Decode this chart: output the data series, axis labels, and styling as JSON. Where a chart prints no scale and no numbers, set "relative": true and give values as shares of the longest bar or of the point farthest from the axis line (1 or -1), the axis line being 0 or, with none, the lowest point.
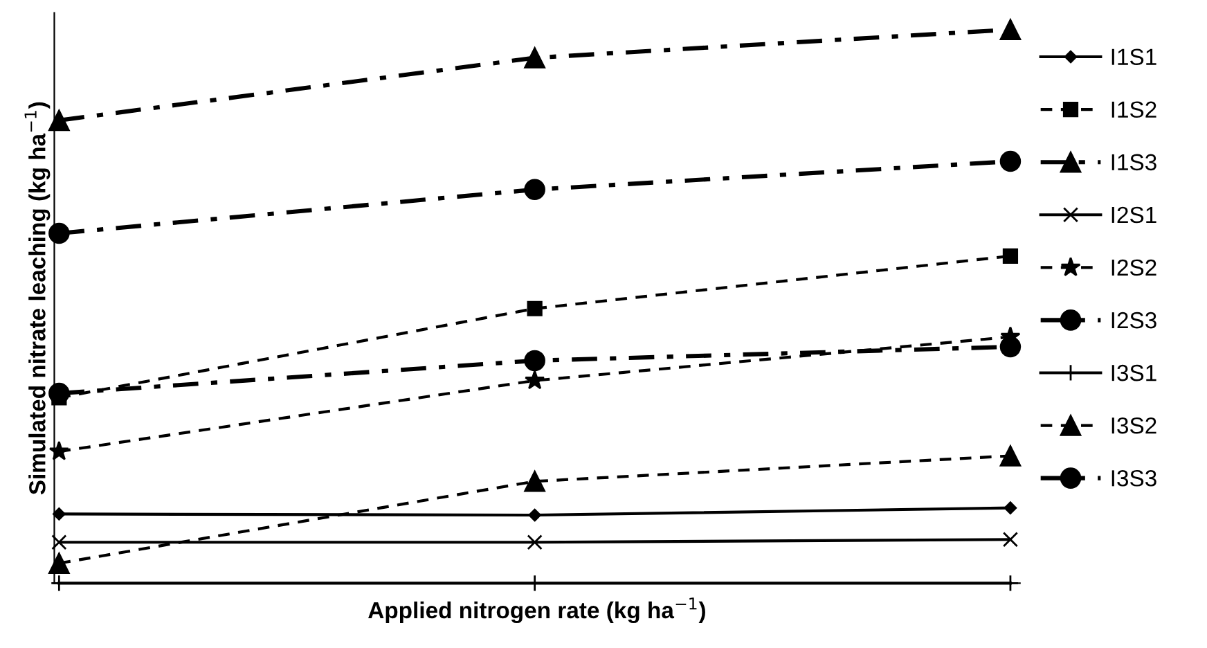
{
  "chart_data": {
    "type": "line",
    "relative": true,
    "xlabel": "Applied nitrogen rate (kg ha$^{−1}$)",
    "ylabel": "Simulated nitrate leaching (kg ha$^{−1}$)",
    "categories": [
      null,
      null,
      null
    ],
    "legend": "right",
    "grid": false,
    "series": [
      {
        "name": "I1S1",
        "color": "#000000",
        "line_style": "solid",
        "marker": "diamond",
        "values": [
          0.125,
          0.123,
          0.136
        ]
      },
      {
        "name": "I1S2",
        "color": "#000000",
        "line_style": "dashed",
        "marker": "square",
        "values": [
          0.335,
          0.496,
          0.591
        ]
      },
      {
        "name": "I1S3",
        "color": "#000000",
        "line_style": "dashdot",
        "marker": "triangle",
        "values": [
          0.836,
          0.949,
          1
        ]
      },
      {
        "name": "I2S1",
        "color": "#000000",
        "line_style": "solid",
        "marker": "cross",
        "values": [
          0.074,
          0.074,
          0.079
        ]
      },
      {
        "name": "I2S2",
        "color": "#000000",
        "line_style": "dashed",
        "marker": "star",
        "values": [
          0.238,
          0.366,
          0.445
        ]
      },
      {
        "name": "I2S3",
        "color": "#000000",
        "line_style": "dashdot",
        "marker": "circle",
        "values": [
          0.632,
          0.711,
          0.762
        ]
      },
      {
        "name": "I3S1",
        "color": "#000000",
        "line_style": "solid",
        "marker": "plus",
        "values": [
          0,
          0,
          0
        ]
      },
      {
        "name": "I3S2",
        "color": "#000000",
        "line_style": "dashed",
        "marker": "triangle",
        "values": [
          0.036,
          0.184,
          0.23
        ]
      },
      {
        "name": "I3S3",
        "color": "#000000",
        "line_style": "dashdot",
        "marker": "circle",
        "values": [
          0.343,
          0.402,
          0.427
        ]
      }
    ]
  }
}
